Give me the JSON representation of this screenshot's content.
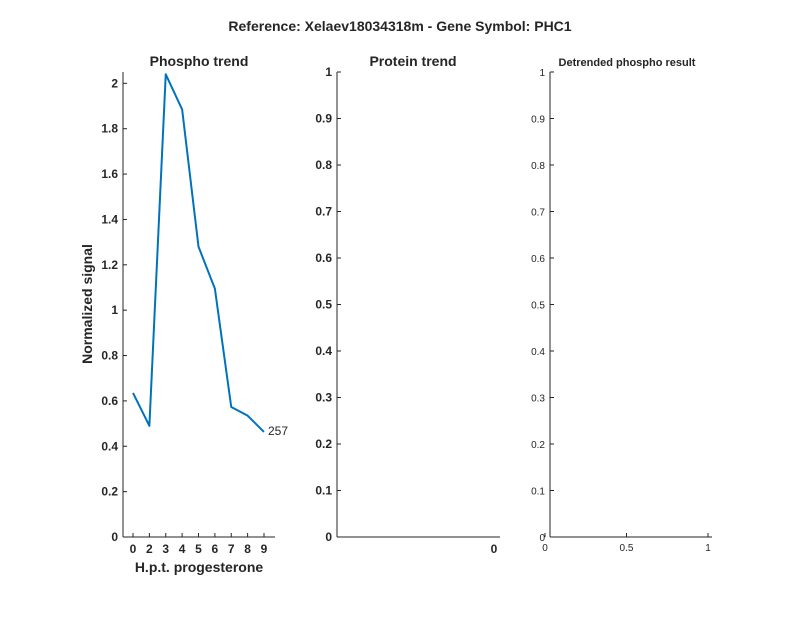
{
  "figure": {
    "suptitle": "Reference:  Xelaev18034318m - Gene Symbol:  PHC1",
    "series_color": "#0072BD"
  },
  "chart_data": [
    {
      "type": "line",
      "title": "Phospho trend",
      "xlabel": "H.p.t. progesterone",
      "ylabel": "Normalized signal",
      "categories": [
        "0",
        "2",
        "3",
        "4",
        "5",
        "6",
        "7",
        "8",
        "9"
      ],
      "y_ticks": [
        "0",
        "0.2",
        "0.4",
        "0.6",
        "0.8",
        "1",
        "1.2",
        "1.4",
        "1.6",
        "1.8",
        "2"
      ],
      "ylim": [
        0,
        2.05
      ],
      "series": [
        {
          "values": [
            0.635,
            0.49,
            2.04,
            1.885,
            1.28,
            1.095,
            0.573,
            0.535,
            0.463
          ]
        }
      ],
      "annotation": "257",
      "grid": false
    },
    {
      "type": "line",
      "title": "Protein trend",
      "x_ticks": [
        "0"
      ],
      "y_ticks": [
        "0",
        "0.1",
        "0.2",
        "0.3",
        "0.4",
        "0.5",
        "0.6",
        "0.7",
        "0.8",
        "0.9",
        "1"
      ],
      "ylim": [
        0,
        1
      ],
      "series": [],
      "grid": false
    },
    {
      "type": "line",
      "title": "Detrended phospho result",
      "x_ticks": [
        "0",
        "0.5",
        "1"
      ],
      "xlim": [
        0,
        1
      ],
      "y_ticks": [
        "0",
        "0.1",
        "0.2",
        "0.3",
        "0.4",
        "0.5",
        "0.6",
        "0.7",
        "0.8",
        "0.9",
        "1"
      ],
      "ylim": [
        0,
        1
      ],
      "series": [],
      "grid": false
    }
  ]
}
